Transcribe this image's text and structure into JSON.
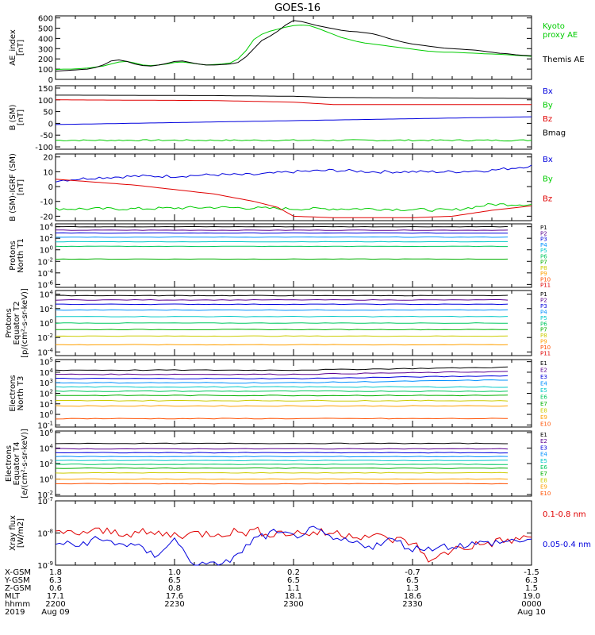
{
  "title": "GOES-16",
  "colors": {
    "black": "#000000",
    "green": "#00cc00",
    "red": "#e00000",
    "blue": "#0000dd",
    "p_series": [
      "#000000",
      "#5a0090",
      "#0000dd",
      "#0090ff",
      "#00c8c8",
      "#00c860",
      "#00b000",
      "#cccc00",
      "#ffa000",
      "#ff5000",
      "#e00000",
      "#a00000"
    ],
    "e_series": [
      "#000000",
      "#5a0090",
      "#0000dd",
      "#0090ff",
      "#00c8c8",
      "#00c860",
      "#00b000",
      "#cccc00",
      "#ffa000",
      "#ff5000",
      "#e00000",
      "#a00000"
    ]
  },
  "chart_data": [
    {
      "id": "ae",
      "type": "line",
      "ylabel": "AE_index\n[nT]",
      "yscale": "linear",
      "ylim": [
        0,
        620
      ],
      "yticks": [
        "0",
        "100",
        "200",
        "300",
        "400",
        "500",
        "600"
      ],
      "ytickvals": [
        0,
        100,
        200,
        300,
        400,
        500,
        600
      ],
      "series": [
        {
          "name": "Kyoto proxy AE",
          "legend": "Kyoto\nproxy AE",
          "color": "green",
          "x": [
            0,
            2,
            4,
            6,
            8,
            10,
            12,
            14,
            16,
            18,
            20,
            22,
            24,
            26,
            28,
            30,
            32,
            34,
            36,
            38,
            40,
            42,
            44,
            46,
            48,
            50,
            52,
            54,
            56,
            58,
            60,
            62,
            64,
            66,
            68,
            70,
            72,
            74,
            76,
            78,
            80,
            82,
            84,
            86,
            88,
            90,
            92,
            94,
            96,
            98,
            100,
            102,
            104,
            106,
            108,
            110,
            112,
            114,
            116,
            118,
            120
          ],
          "y": [
            95,
            100,
            100,
            105,
            110,
            120,
            130,
            150,
            170,
            175,
            160,
            140,
            135,
            140,
            150,
            165,
            170,
            160,
            150,
            140,
            145,
            150,
            160,
            200,
            280,
            390,
            440,
            470,
            490,
            510,
            525,
            530,
            525,
            500,
            470,
            440,
            410,
            390,
            370,
            355,
            345,
            335,
            325,
            315,
            305,
            295,
            285,
            275,
            270,
            265,
            265,
            262,
            258,
            255,
            250,
            248,
            245,
            240,
            235,
            230,
            225
          ]
        },
        {
          "name": "Themis AE",
          "legend": "Themis AE",
          "color": "black",
          "x": [
            0,
            2,
            4,
            6,
            8,
            10,
            12,
            14,
            16,
            18,
            20,
            22,
            24,
            26,
            28,
            30,
            32,
            34,
            36,
            38,
            40,
            42,
            44,
            46,
            48,
            50,
            52,
            54,
            56,
            58,
            60,
            62,
            64,
            66,
            68,
            70,
            72,
            74,
            76,
            78,
            80,
            82,
            84,
            86,
            88,
            90,
            92,
            94,
            96,
            98,
            100,
            102,
            104,
            106,
            108,
            110,
            112,
            114,
            116,
            118,
            120
          ],
          "y": [
            80,
            85,
            90,
            95,
            100,
            115,
            140,
            180,
            190,
            175,
            150,
            135,
            130,
            140,
            155,
            175,
            180,
            165,
            150,
            140,
            140,
            145,
            150,
            165,
            220,
            300,
            380,
            420,
            470,
            530,
            575,
            565,
            545,
            525,
            510,
            495,
            480,
            470,
            465,
            455,
            445,
            425,
            400,
            380,
            360,
            345,
            335,
            325,
            315,
            305,
            300,
            295,
            290,
            285,
            275,
            265,
            255,
            250,
            240,
            235,
            230
          ]
        }
      ]
    },
    {
      "id": "bsm",
      "type": "line",
      "ylabel": "B (SM)\n[nT]",
      "yscale": "linear",
      "ylim": [
        -110,
        160
      ],
      "yticks": [
        "-100",
        "-50",
        "0",
        "50",
        "100",
        "150"
      ],
      "ytickvals": [
        -100,
        -50,
        0,
        50,
        100,
        150
      ],
      "series": [
        {
          "name": "Bx",
          "color": "blue",
          "x": [
            0,
            120
          ],
          "y": [
            -5,
            28
          ]
        },
        {
          "name": "By",
          "color": "green",
          "x": [
            0,
            120
          ],
          "y": [
            -72,
            -72
          ],
          "noise": 3
        },
        {
          "name": "Bz",
          "color": "red",
          "x": [
            0,
            40,
            60,
            70,
            120
          ],
          "y": [
            100,
            97,
            90,
            80,
            80
          ]
        },
        {
          "name": "Bmag",
          "color": "black",
          "x": [
            0,
            40,
            60,
            70,
            120
          ],
          "y": [
            120,
            118,
            115,
            110,
            106
          ]
        }
      ]
    },
    {
      "id": "bigrf",
      "type": "line",
      "ylabel": "B (SM)-IGRF (SM)\n[nT]",
      "yscale": "linear",
      "ylim": [
        -23,
        22
      ],
      "yticks": [
        "-20",
        "-10",
        "0",
        "10",
        "20"
      ],
      "ytickvals": [
        -20,
        -10,
        0,
        10,
        20
      ],
      "series": [
        {
          "name": "Bx",
          "color": "blue",
          "x": [
            0,
            10,
            20,
            30,
            40,
            50,
            60,
            70,
            80,
            90,
            100,
            110,
            120
          ],
          "y": [
            4,
            6,
            7,
            7,
            8,
            8,
            10,
            11,
            10,
            10,
            10,
            11,
            14
          ],
          "noise": 1
        },
        {
          "name": "By",
          "color": "green",
          "x": [
            0,
            20,
            40,
            60,
            80,
            100,
            110,
            120
          ],
          "y": [
            -15,
            -15,
            -14,
            -15,
            -15,
            -16,
            -12,
            -12
          ],
          "noise": 1
        },
        {
          "name": "Bz",
          "color": "red",
          "x": [
            0,
            10,
            20,
            30,
            40,
            50,
            56,
            60,
            70,
            80,
            90,
            100,
            110,
            120
          ],
          "y": [
            5,
            3,
            1,
            -2,
            -5,
            -10,
            -14,
            -20,
            -21,
            -21,
            -21,
            -20,
            -16,
            -13
          ]
        }
      ]
    },
    {
      "id": "pt1",
      "type": "line",
      "ylabel": "Protons\nNorth T1",
      "yscale": "log",
      "ylim": [
        -6.5,
        4.5
      ],
      "yticks": [
        "10^4",
        "10^2",
        "10^0",
        "10^-2",
        "10^-4",
        "10^-6"
      ],
      "ytickvals": [
        4,
        2,
        0,
        -2,
        -4,
        -6
      ],
      "labels": [
        "P1",
        "P2",
        "P3",
        "P4",
        "P5",
        "P6",
        "P7",
        "P8",
        "P9",
        "P10",
        "P11"
      ],
      "levels": [
        4.0,
        3.4,
        2.9,
        2.2,
        1.4,
        0.6,
        -1.6,
        -99,
        -99,
        -99,
        -99
      ],
      "series_note": "flat lines"
    },
    {
      "id": "pt2",
      "type": "line",
      "ylabel": "Protons\nEquator T2\n[p/(cm²-s-sr-keV)]",
      "yscale": "log",
      "ylim": [
        -4.5,
        4.5
      ],
      "yticks": [
        "10^4",
        "10^2",
        "10^0",
        "10^-2",
        "10^-4"
      ],
      "ytickvals": [
        4,
        2,
        0,
        -2,
        -4
      ],
      "labels": [
        "P1",
        "P2",
        "P3",
        "P4",
        "P5",
        "P6",
        "P7",
        "P8",
        "P9",
        "P10",
        "P11"
      ],
      "levels": [
        3.8,
        3.2,
        2.6,
        1.8,
        0.9,
        0.0,
        -0.9,
        -1.8,
        -3.0,
        -99,
        -99
      ]
    },
    {
      "id": "et3",
      "type": "line",
      "ylabel": "Electrons\nNorth T3",
      "yscale": "log",
      "ylim": [
        -1.2,
        5.2
      ],
      "yticks": [
        "10^5",
        "10^4",
        "10^3",
        "10^2",
        "10^1",
        "10^0",
        "10^-1"
      ],
      "ytickvals": [
        5,
        4,
        3,
        2,
        1,
        0,
        -1
      ],
      "labels": [
        "E1",
        "E2",
        "E3",
        "E4",
        "E5",
        "E6",
        "E7",
        "E8",
        "E9",
        "E10"
      ],
      "levels": [
        4.2,
        3.8,
        3.4,
        3.0,
        2.6,
        2.2,
        1.8,
        1.3,
        0.8,
        -0.4
      ]
    },
    {
      "id": "et4",
      "type": "line",
      "ylabel": "Electrons\nEquator T4\n[e/(cm²-s-sr-keV)]",
      "yscale": "log",
      "ylim": [
        -2.2,
        6.2
      ],
      "yticks": [
        "10^6",
        "10^4",
        "10^2",
        "10^0",
        "10^-2"
      ],
      "ytickvals": [
        6,
        4,
        2,
        0,
        -2
      ],
      "labels": [
        "E1",
        "E2",
        "E3",
        "E4",
        "E5",
        "E6",
        "E7",
        "E8",
        "E9",
        "E10"
      ],
      "levels": [
        4.6,
        3.9,
        3.4,
        2.9,
        2.4,
        1.9,
        1.4,
        0.8,
        0.0,
        -0.6
      ]
    },
    {
      "id": "xray",
      "type": "line",
      "ylabel": "Xray flux\n[W/m2]",
      "yscale": "log",
      "ylim": [
        -9.0,
        -7.0
      ],
      "yticks": [
        "10^-7",
        "10^-8",
        "10^-9"
      ],
      "ytickvals": [
        -7,
        -8,
        -9
      ],
      "series": [
        {
          "name": "0.1-0.8 nm",
          "color": "red",
          "x": [
            0,
            10,
            20,
            30,
            40,
            50,
            55,
            60,
            70,
            80,
            90,
            95,
            100,
            110,
            120
          ],
          "y": [
            -8.05,
            -7.95,
            -8.0,
            -8.05,
            -8.0,
            -7.95,
            -8.0,
            -8.0,
            -8.0,
            -8.1,
            -8.3,
            -8.9,
            -8.5,
            -8.3,
            -8.15
          ],
          "noise": 0.15
        },
        {
          "name": "0.05-0.4 nm",
          "color": "blue",
          "x": [
            0,
            5,
            10,
            20,
            25,
            30,
            35,
            40,
            45,
            50,
            55,
            60,
            65,
            70,
            80,
            85,
            90,
            100,
            110,
            120
          ],
          "y": [
            -8.3,
            -8.4,
            -8.2,
            -8.4,
            -8.7,
            -8.2,
            -9.0,
            -9.0,
            -8.8,
            -8.2,
            -8.0,
            -8.1,
            -7.9,
            -8.2,
            -8.4,
            -8.2,
            -8.5,
            -8.4,
            -8.3,
            -8.2
          ],
          "noise": 0.12
        }
      ]
    }
  ],
  "xaxis": {
    "rows": [
      {
        "label": "X-GSM",
        "vals": [
          "1.8",
          "1.0",
          "0.2",
          "-0.7",
          "-1.5"
        ]
      },
      {
        "label": "Y-GSM",
        "vals": [
          "6.3",
          "6.5",
          "6.5",
          "6.5",
          "6.3"
        ]
      },
      {
        "label": "Z-GSM",
        "vals": [
          "0.6",
          "0.8",
          "1.1",
          "1.3",
          "1.5"
        ]
      },
      {
        "label": "MLT",
        "vals": [
          "17.1",
          "17.6",
          "18.1",
          "18.6",
          "19.0"
        ]
      },
      {
        "label": "hhmm",
        "vals": [
          "2200",
          "2230",
          "2300",
          "2330",
          "0000"
        ]
      },
      {
        "label": "2019",
        "vals": [
          "Aug 09",
          "",
          "",
          "",
          "Aug 10"
        ]
      }
    ],
    "ticks_minutes": [
      0,
      30,
      60,
      90,
      120
    ]
  }
}
